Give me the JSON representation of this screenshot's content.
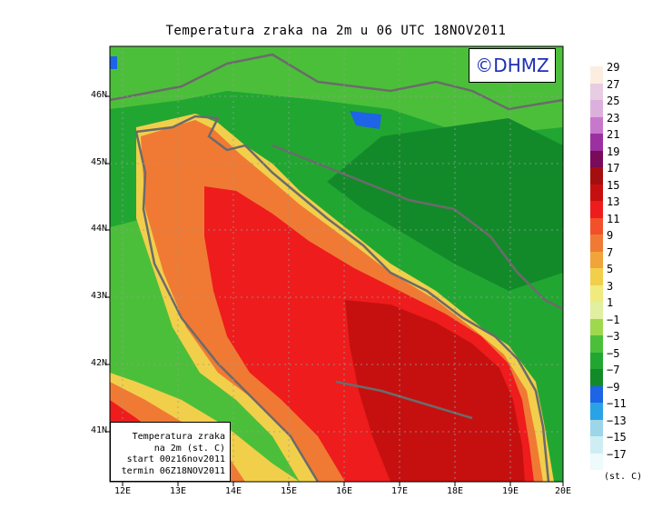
{
  "title": "Temperatura zraka na 2m u 06 UTC 18NOV2011",
  "watermark": "©DHMZ",
  "info_box": {
    "line1": "Temperatura zraka",
    "line2": "na 2m (st. C)",
    "line3": "start 00z16nov2011",
    "line4": "termin 06Z18NOV2011"
  },
  "lat_labels": [
    "46N",
    "45N",
    "44N",
    "43N",
    "42N",
    "41N"
  ],
  "lon_labels": [
    "12E",
    "13E",
    "14E",
    "15E",
    "16E",
    "17E",
    "18E",
    "19E",
    "20E"
  ],
  "legend": {
    "units": "(st. C)",
    "bins": [
      {
        "label": "29",
        "color": "#fbeee0"
      },
      {
        "label": "27",
        "color": "#e8cce2"
      },
      {
        "label": "25",
        "color": "#dcb0dc"
      },
      {
        "label": "23",
        "color": "#c778cc"
      },
      {
        "label": "21",
        "color": "#9b30a0"
      },
      {
        "label": "19",
        "color": "#7a0a5a"
      },
      {
        "label": "17",
        "color": "#a50e0e"
      },
      {
        "label": "15",
        "color": "#c61010"
      },
      {
        "label": "13",
        "color": "#ee1c1c"
      },
      {
        "label": "11",
        "color": "#f2502a"
      },
      {
        "label": "9",
        "color": "#f07a34"
      },
      {
        "label": "7",
        "color": "#f0a43a"
      },
      {
        "label": "5",
        "color": "#f2cf4a"
      },
      {
        "label": "3",
        "color": "#f1ea7c"
      },
      {
        "label": "1",
        "color": "#e0f0a0"
      },
      {
        "label": "−1",
        "color": "#9ed84e"
      },
      {
        "label": "−3",
        "color": "#4cbf3a"
      },
      {
        "label": "−5",
        "color": "#22a632"
      },
      {
        "label": "−7",
        "color": "#138a2a"
      },
      {
        "label": "−9",
        "color": "#1e64e6"
      },
      {
        "label": "−11",
        "color": "#2aa3e6"
      },
      {
        "label": "−13",
        "color": "#9dd6e8"
      },
      {
        "label": "−15",
        "color": "#cfeef4"
      },
      {
        "label": "−17",
        "color": "#eefafc"
      }
    ]
  }
}
